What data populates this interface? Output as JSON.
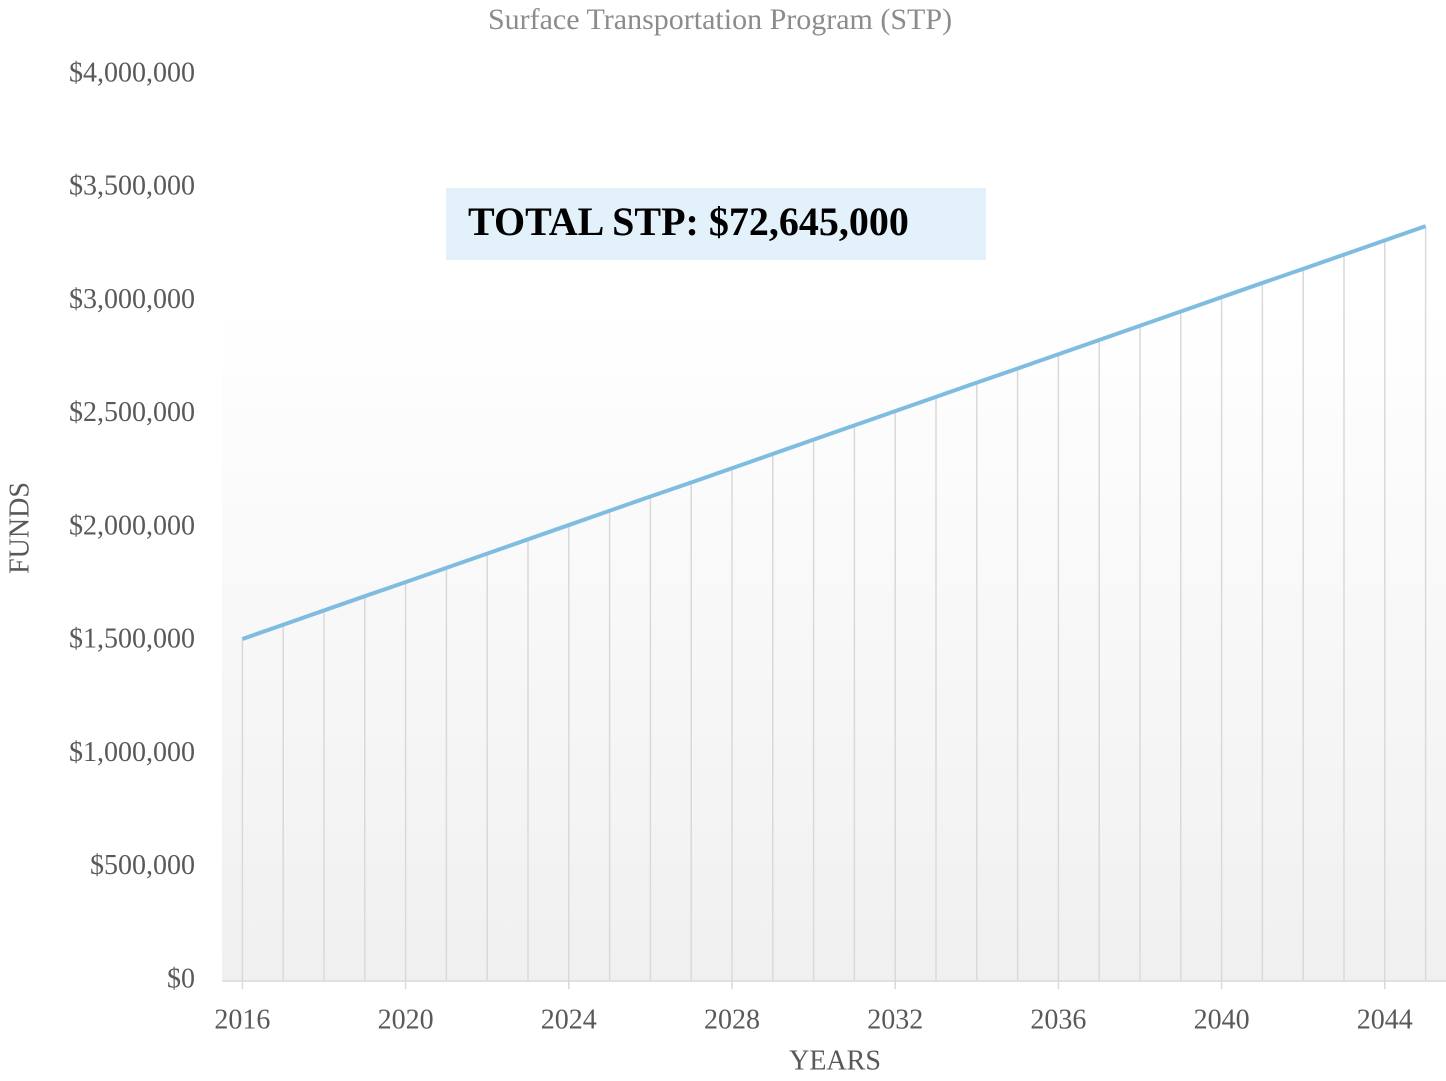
{
  "chart_data": {
    "type": "line",
    "title": "Surface Transportation Program (STP)",
    "x_label": "YEARS",
    "y_label": "FUNDS",
    "annotation": "TOTAL STP: $72,645,000",
    "x": [
      2016,
      2017,
      2018,
      2019,
      2020,
      2021,
      2022,
      2023,
      2024,
      2025,
      2026,
      2027,
      2028,
      2029,
      2030,
      2031,
      2032,
      2033,
      2034,
      2035,
      2036,
      2037,
      2038,
      2039,
      2040,
      2041,
      2042,
      2043,
      2044,
      2045
    ],
    "series": [
      {
        "color": "#7fbde0",
        "values": [
          1510000,
          1573000,
          1636000,
          1699000,
          1761000,
          1824000,
          1887000,
          1950000,
          2013000,
          2076000,
          2139000,
          2201000,
          2264000,
          2327000,
          2390000,
          2453000,
          2516000,
          2579000,
          2642000,
          2704000,
          2767000,
          2830000,
          2893000,
          2956000,
          3019000,
          3082000,
          3144000,
          3207000,
          3270000,
          3333000
        ]
      }
    ],
    "xlim": [
      2015.5,
      2045.5
    ],
    "xticks": [
      2016,
      2020,
      2024,
      2028,
      2032,
      2036,
      2040,
      2044
    ],
    "ylim": [
      0,
      4000000
    ],
    "yticks": [
      {
        "value": 0,
        "label": "$0"
      },
      {
        "value": 500000,
        "label": "$500,000"
      },
      {
        "value": 1000000,
        "label": "$1,000,000"
      },
      {
        "value": 1500000,
        "label": "$1,500,000"
      },
      {
        "value": 2000000,
        "label": "$2,000,000"
      },
      {
        "value": 2500000,
        "label": "$2,500,000"
      },
      {
        "value": 3000000,
        "label": "$3,000,000"
      },
      {
        "value": 3500000,
        "label": "$3,500,000"
      },
      {
        "value": 4000000,
        "label": "$4,000,000"
      }
    ],
    "drop_lines": true
  }
}
